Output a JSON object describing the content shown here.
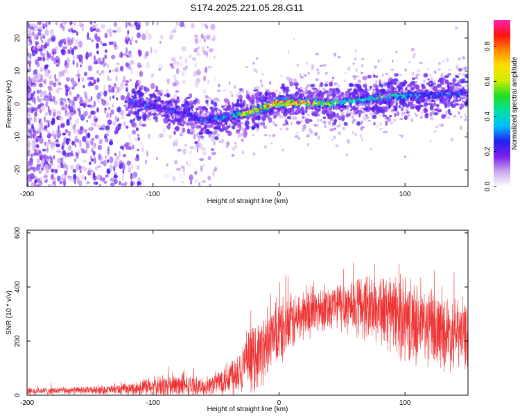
{
  "chart_data": [
    {
      "type": "heatmap",
      "title": "S174.2025.221.05.28.G11",
      "xlabel": "Height of straight line (km)",
      "ylabel": "Frequency (Hz)",
      "xlim": [
        -200,
        150
      ],
      "ylim": [
        -25,
        25
      ],
      "xticks": [
        -200,
        -100,
        0,
        100
      ],
      "yticks": [
        -20,
        -10,
        0,
        10,
        20
      ],
      "colorbar": {
        "label": "Normalized spectral amplitude",
        "range": [
          0.0,
          0.95
        ],
        "ticks": [
          0.0,
          0.2,
          0.4,
          0.6,
          0.8
        ],
        "tick_labels": [
          "0.0",
          "0.2",
          "0.4",
          "0.6",
          "0.8"
        ],
        "colors": [
          "#ffffff",
          "#c9a6ee",
          "#7a1ff0",
          "#2222ee",
          "#00bfff",
          "#00e0a0",
          "#22dd22",
          "#ccee00",
          "#ffdd00",
          "#ff8800",
          "#ff1111",
          "#ff22aa"
        ]
      },
      "ridge": {
        "description_points_x": [
          -120,
          -100,
          -80,
          -60,
          -40,
          -20,
          0,
          20,
          40,
          60,
          80,
          100,
          120,
          150
        ],
        "center_freq_hz": [
          0.5,
          -0.5,
          -2.5,
          -5.0,
          -4.0,
          -2.0,
          0.5,
          0.5,
          0.0,
          1.0,
          2.0,
          2.5,
          2.5,
          3.5
        ],
        "peak_amplitude": [
          0.35,
          0.3,
          0.28,
          0.32,
          0.45,
          0.75,
          0.9,
          0.9,
          0.6,
          0.45,
          0.55,
          0.45,
          0.35,
          0.3
        ]
      },
      "noise_region_x": [
        -200,
        -60
      ],
      "noise_amplitude": 0.15
    },
    {
      "type": "line",
      "xlabel": "Height of straight line (km)",
      "ylabel": "SNR (10 * v/v)",
      "xlim": [
        -200,
        150
      ],
      "ylim": [
        0,
        610
      ],
      "xticks": [
        -200,
        -100,
        0,
        100
      ],
      "yticks": [
        0,
        200,
        400,
        600
      ],
      "line_color": "#ee3333",
      "envelope": {
        "x": [
          -200,
          -150,
          -120,
          -100,
          -80,
          -60,
          -50,
          -40,
          -30,
          -20,
          -10,
          0,
          20,
          40,
          60,
          80,
          100,
          120,
          135,
          150
        ],
        "median": [
          15,
          18,
          22,
          30,
          35,
          30,
          45,
          70,
          100,
          140,
          180,
          230,
          300,
          330,
          335,
          320,
          280,
          250,
          230,
          220
        ],
        "spread": [
          12,
          14,
          20,
          40,
          45,
          30,
          40,
          70,
          90,
          120,
          120,
          120,
          90,
          80,
          110,
          130,
          150,
          140,
          130,
          120
        ]
      }
    }
  ]
}
